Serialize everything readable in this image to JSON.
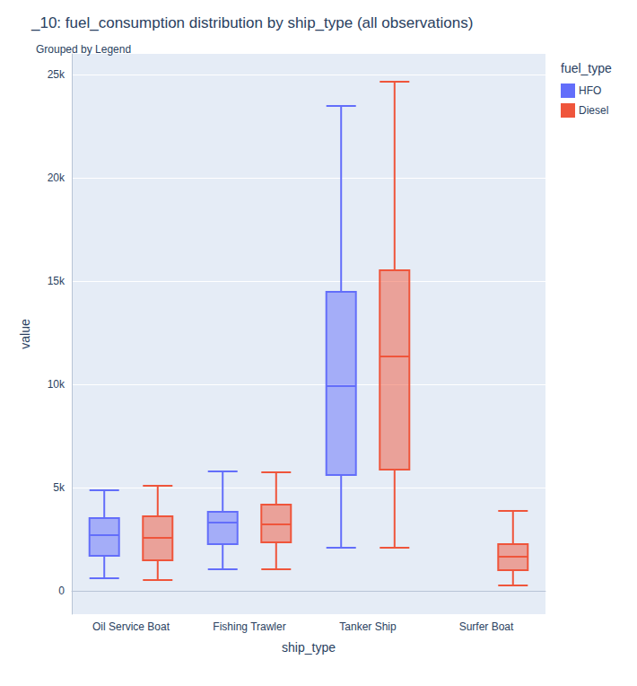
{
  "chart_data": {
    "type": "boxplot",
    "title": "_10: fuel_consumption distribution by ship_type (all observations)",
    "subtitle": "Grouped by Legend",
    "x_label": "ship_type",
    "y_label": "value",
    "legend_title": "fuel_type",
    "legend": "top-right",
    "grid": true,
    "categories": [
      "Oil Service Boat",
      "Fishing Trawler",
      "Tanker Ship",
      "Surfer Boat"
    ],
    "series": [
      {
        "name": "HFO",
        "color": "#636efa",
        "values": [
          [
            610,
            1700,
            2700,
            3520,
            4870
          ],
          [
            1040,
            2260,
            3300,
            3830,
            5780
          ],
          [
            2090,
            5610,
            9910,
            14480,
            23480
          ],
          null
        ]
      },
      {
        "name": "Diesel",
        "color": "#ef553b",
        "values": [
          [
            520,
            1480,
            2570,
            3610,
            5090
          ],
          [
            1040,
            2350,
            3220,
            4170,
            5740
          ],
          [
            2090,
            5870,
            11350,
            15520,
            24650
          ],
          [
            260,
            1000,
            1650,
            2260,
            3870
          ]
        ]
      }
    ],
    "ylim": [
      -1130,
      26000
    ],
    "yticks": [
      0,
      {
        "value": 5000,
        "label": "5k"
      },
      {
        "value": 10000,
        "label": "10k"
      },
      {
        "value": 15000,
        "label": "15k"
      },
      {
        "value": 20000,
        "label": "20k"
      },
      {
        "value": 25000,
        "label": "25k"
      }
    ]
  }
}
